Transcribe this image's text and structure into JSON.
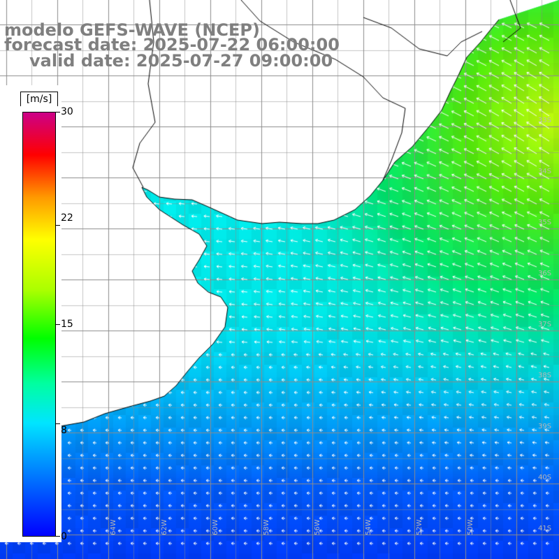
{
  "title": {
    "line1": "modelo GEFS-WAVE (NCEP)",
    "line2": "forecast date: 2025-07-22 06:00:00",
    "line3": "valid date: 2025-07-27 09:00:00"
  },
  "colorbar": {
    "unit": "[m/s]",
    "ticks": [
      "30",
      "22",
      "15",
      "8",
      "0"
    ],
    "min": 0,
    "max": 30,
    "colors": [
      "#0000ff",
      "#0055ff",
      "#00aaff",
      "#00e5ff",
      "#00ffa0",
      "#00ff00",
      "#aaff00",
      "#ffff00",
      "#ff9900",
      "#ff0000",
      "#cc0088"
    ]
  },
  "grid": {
    "lat_labels": [
      "33S",
      "34S",
      "35S",
      "36S",
      "37S",
      "38S",
      "39S",
      "40S",
      "41S"
    ],
    "lon_labels": [
      "64W",
      "62W",
      "60W",
      "58W",
      "56W",
      "54W",
      "52W",
      "50W"
    ]
  },
  "style": {
    "ocean_weak": "#0060ff",
    "ocean_mid": "#00f0f0",
    "ocean_strong": "#30e000",
    "land": "#ffffff",
    "grid_color": "#8c8c8c",
    "title_color": "#7f7f7f",
    "arrow_color": "#ffffff"
  }
}
